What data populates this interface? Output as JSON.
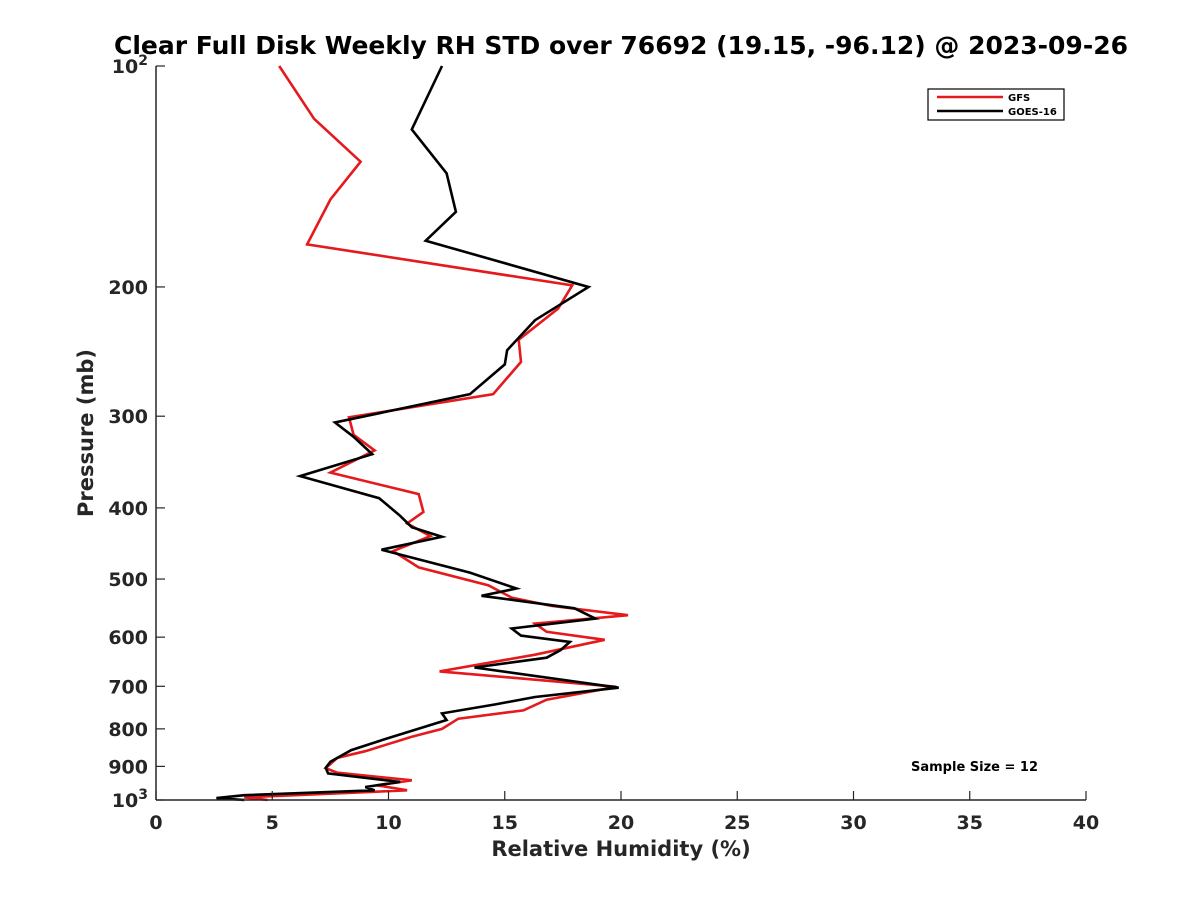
{
  "chart_data": {
    "type": "line",
    "title": "Clear Full Disk Weekly RH STD over 76692 (19.15, -96.12) @ 2023-09-26",
    "xlabel": "Relative Humidity (%)",
    "ylabel": "Pressure (mb)",
    "xlim": [
      0,
      40
    ],
    "ylim": [
      100,
      1000
    ],
    "yscale": "log",
    "y_reversed": true,
    "grid": false,
    "legend_position": "top-right",
    "x_ticks": [
      0,
      5,
      10,
      15,
      20,
      25,
      30,
      35,
      40
    ],
    "x_tick_labels": [
      "0",
      "5",
      "10",
      "15",
      "20",
      "25",
      "30",
      "35",
      "40"
    ],
    "y_ticks": [
      100,
      200,
      300,
      400,
      500,
      600,
      700,
      800,
      900,
      1000
    ],
    "y_tick_labels": [
      {
        "base": "10",
        "exp": "2"
      },
      {
        "base": "200",
        "exp": ""
      },
      {
        "base": "300",
        "exp": ""
      },
      {
        "base": "400",
        "exp": ""
      },
      {
        "base": "500",
        "exp": ""
      },
      {
        "base": "600",
        "exp": ""
      },
      {
        "base": "700",
        "exp": ""
      },
      {
        "base": "800",
        "exp": ""
      },
      {
        "base": "900",
        "exp": ""
      },
      {
        "base": "10",
        "exp": "3"
      }
    ],
    "series": [
      {
        "name": "GFS",
        "color": "#e41a1c",
        "points": [
          [
            5.3,
            100
          ],
          [
            6.8,
            118
          ],
          [
            8.8,
            135
          ],
          [
            7.5,
            152
          ],
          [
            6.5,
            175
          ],
          [
            17.9,
            199
          ],
          [
            17.3,
            214
          ],
          [
            15.6,
            236
          ],
          [
            15.7,
            253
          ],
          [
            14.5,
            280
          ],
          [
            8.3,
            301
          ],
          [
            8.5,
            318
          ],
          [
            9.4,
            334
          ],
          [
            7.5,
            358
          ],
          [
            11.3,
            383
          ],
          [
            11.5,
            405
          ],
          [
            10.8,
            420
          ],
          [
            11.8,
            437
          ],
          [
            10.2,
            458
          ],
          [
            11.3,
            482
          ],
          [
            14.3,
            510
          ],
          [
            15.3,
            530
          ],
          [
            17.0,
            544
          ],
          [
            20.3,
            560
          ],
          [
            16.3,
            575
          ],
          [
            16.8,
            590
          ],
          [
            19.3,
            605
          ],
          [
            16.3,
            634
          ],
          [
            12.2,
            668
          ],
          [
            19.8,
            701
          ],
          [
            16.8,
            730
          ],
          [
            15.8,
            755
          ],
          [
            13.0,
            775
          ],
          [
            12.3,
            800
          ],
          [
            11.0,
            820
          ],
          [
            9.0,
            858
          ],
          [
            7.8,
            876
          ],
          [
            7.3,
            905
          ],
          [
            7.8,
            918
          ],
          [
            11.0,
            940
          ],
          [
            9.5,
            955
          ],
          [
            10.8,
            970
          ],
          [
            7.6,
            980
          ],
          [
            3.8,
            992
          ],
          [
            4.8,
            1000
          ]
        ]
      },
      {
        "name": "GOES-16",
        "color": "#000000",
        "points": [
          [
            12.3,
            100
          ],
          [
            11.0,
            122
          ],
          [
            12.5,
            140
          ],
          [
            12.9,
            158
          ],
          [
            11.6,
            173
          ],
          [
            18.6,
            200
          ],
          [
            16.3,
            222
          ],
          [
            15.1,
            244
          ],
          [
            15.0,
            255
          ],
          [
            13.5,
            280
          ],
          [
            7.7,
            306
          ],
          [
            8.5,
            320
          ],
          [
            9.3,
            338
          ],
          [
            6.2,
            362
          ],
          [
            9.6,
            388
          ],
          [
            10.5,
            410
          ],
          [
            11.0,
            425
          ],
          [
            12.3,
            438
          ],
          [
            9.7,
            456
          ],
          [
            13.5,
            490
          ],
          [
            15.5,
            515
          ],
          [
            14.0,
            527
          ],
          [
            18.0,
            548
          ],
          [
            18.9,
            566
          ],
          [
            15.3,
            584
          ],
          [
            15.7,
            597
          ],
          [
            17.8,
            609
          ],
          [
            17.4,
            625
          ],
          [
            16.8,
            640
          ],
          [
            13.7,
            660
          ],
          [
            19.9,
            703
          ],
          [
            16.3,
            724
          ],
          [
            14.6,
            741
          ],
          [
            12.3,
            762
          ],
          [
            12.5,
            778
          ],
          [
            9.9,
            825
          ],
          [
            8.4,
            855
          ],
          [
            7.5,
            887
          ],
          [
            7.3,
            904
          ],
          [
            7.4,
            920
          ],
          [
            10.5,
            945
          ],
          [
            9.0,
            960
          ],
          [
            9.4,
            970
          ],
          [
            3.8,
            985
          ],
          [
            2.6,
            994
          ],
          [
            3.8,
            1000
          ]
        ]
      }
    ],
    "annotations": [
      "Sample Size = 12"
    ]
  }
}
